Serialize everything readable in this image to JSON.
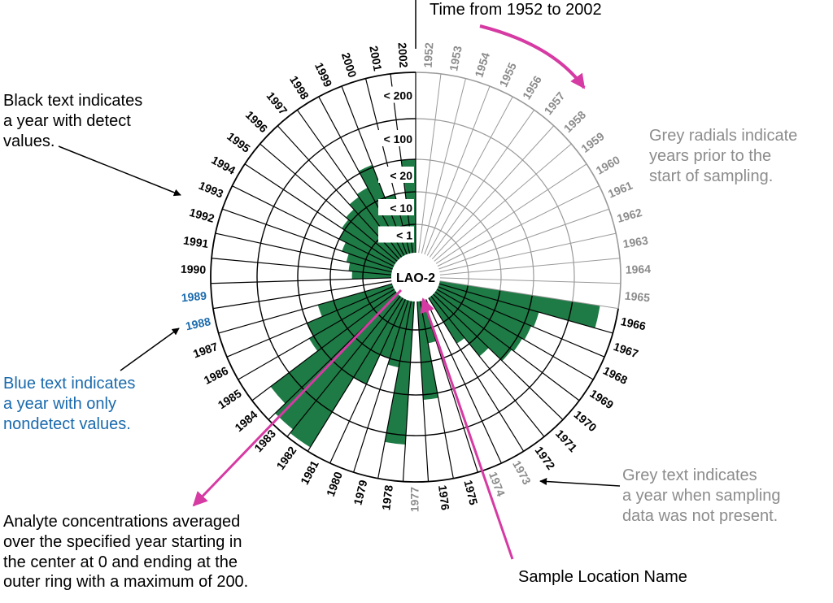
{
  "diagram": {
    "location_name": "LAO-2",
    "ring_labels": [
      "< 1",
      "< 10",
      "< 20",
      "< 100",
      "< 200"
    ],
    "colors": {
      "detect": "#000000",
      "nondetect": "#1a6aad",
      "no_data": "#8c8c8c",
      "grey_radial": "#9a9a9a",
      "fill": "#1e7b45",
      "arrow_magenta": "#d63aa3"
    },
    "years": [
      {
        "year": "1952",
        "status": "no_data",
        "value": 0
      },
      {
        "year": "1953",
        "status": "no_data",
        "value": 0
      },
      {
        "year": "1954",
        "status": "no_data",
        "value": 0
      },
      {
        "year": "1955",
        "status": "no_data",
        "value": 0
      },
      {
        "year": "1956",
        "status": "no_data",
        "value": 0
      },
      {
        "year": "1957",
        "status": "no_data",
        "value": 0
      },
      {
        "year": "1958",
        "status": "no_data",
        "value": 0
      },
      {
        "year": "1959",
        "status": "no_data",
        "value": 0
      },
      {
        "year": "1960",
        "status": "no_data",
        "value": 0
      },
      {
        "year": "1961",
        "status": "no_data",
        "value": 0
      },
      {
        "year": "1962",
        "status": "no_data",
        "value": 0
      },
      {
        "year": "1963",
        "status": "no_data",
        "value": 0
      },
      {
        "year": "1964",
        "status": "no_data",
        "value": 0
      },
      {
        "year": "1965",
        "status": "no_data",
        "value": 0
      },
      {
        "year": "1966",
        "status": "detect",
        "value": 160
      },
      {
        "year": "1967",
        "status": "detect",
        "value": 40
      },
      {
        "year": "1968",
        "status": "detect",
        "value": 35
      },
      {
        "year": "1969",
        "status": "detect",
        "value": 30
      },
      {
        "year": "1970",
        "status": "detect",
        "value": 25
      },
      {
        "year": "1971",
        "status": "detect",
        "value": 15
      },
      {
        "year": "1972",
        "status": "detect",
        "value": 8
      },
      {
        "year": "1973",
        "status": "no_data",
        "value": 0
      },
      {
        "year": "1974",
        "status": "no_data",
        "value": 0
      },
      {
        "year": "1975",
        "status": "detect",
        "value": 5
      },
      {
        "year": "1976",
        "status": "detect",
        "value": 30
      },
      {
        "year": "1977",
        "status": "no_data",
        "value": 0
      },
      {
        "year": "1978",
        "status": "detect",
        "value": 120
      },
      {
        "year": "1979",
        "status": "detect",
        "value": 12
      },
      {
        "year": "1980",
        "status": "detect",
        "value": 10
      },
      {
        "year": "1981",
        "status": "detect",
        "value": 20
      },
      {
        "year": "1982",
        "status": "detect",
        "value": 190
      },
      {
        "year": "1983",
        "status": "detect",
        "value": 180
      },
      {
        "year": "1984",
        "status": "detect",
        "value": 150
      },
      {
        "year": "1985",
        "status": "detect",
        "value": 30
      },
      {
        "year": "1986",
        "status": "detect",
        "value": 20
      },
      {
        "year": "1987",
        "status": "detect",
        "value": 15
      },
      {
        "year": "1988",
        "status": "nondetect",
        "value": 0
      },
      {
        "year": "1989",
        "status": "nondetect",
        "value": 0
      },
      {
        "year": "1990",
        "status": "detect",
        "value": 4
      },
      {
        "year": "1991",
        "status": "detect",
        "value": 5
      },
      {
        "year": "1992",
        "status": "detect",
        "value": 6
      },
      {
        "year": "1993",
        "status": "detect",
        "value": 8
      },
      {
        "year": "1994",
        "status": "detect",
        "value": 10
      },
      {
        "year": "1995",
        "status": "detect",
        "value": 11
      },
      {
        "year": "1996",
        "status": "detect",
        "value": 12
      },
      {
        "year": "1997",
        "status": "detect",
        "value": 14
      },
      {
        "year": "1998",
        "status": "detect",
        "value": 15
      },
      {
        "year": "1999",
        "status": "detect",
        "value": 25
      },
      {
        "year": "2000",
        "status": "detect",
        "value": 10
      },
      {
        "year": "2001",
        "status": "detect",
        "value": 8
      },
      {
        "year": "2002",
        "status": "detect",
        "value": 20
      }
    ]
  },
  "annotations": {
    "time": "Time from 1952 to 2002",
    "black_text": [
      "Black text indicates",
      "a year with detect",
      "values."
    ],
    "grey_radials": [
      "Grey radials indicate",
      "years prior to the",
      "start of sampling."
    ],
    "blue_text": [
      "Blue text indicates",
      "a year with only",
      "nondetect values."
    ],
    "grey_text": [
      "Grey text indicates",
      "a year when sampling",
      "data was not present."
    ],
    "analyte": [
      "Analyte concentrations averaged",
      "over the specified year starting in",
      "the center at 0 and ending at the",
      "outer ring with a maximum of 200."
    ],
    "sample_location": "Sample Location Name"
  }
}
